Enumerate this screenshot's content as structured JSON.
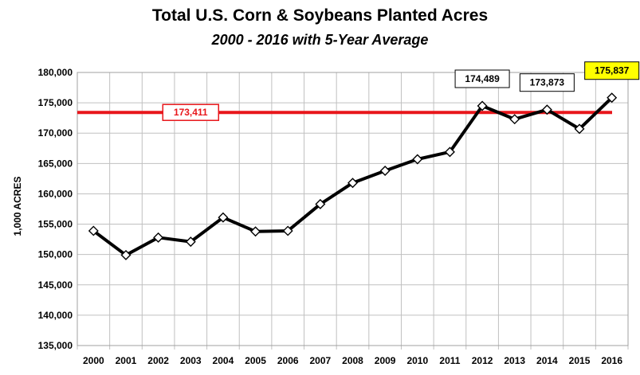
{
  "chart_data": {
    "type": "line",
    "title": "Total U.S. Corn & Soybeans Planted Acres",
    "subtitle": "2000 - 2016 with 5-Year Average",
    "xlabel": "",
    "ylabel": "1,000 ACRES",
    "ylim": [
      135000,
      180000
    ],
    "y_ticks": [
      135000,
      140000,
      145000,
      150000,
      155000,
      160000,
      165000,
      170000,
      175000,
      180000
    ],
    "y_tick_labels": [
      "135,000",
      "140,000",
      "145,000",
      "150,000",
      "155,000",
      "160,000",
      "165,000",
      "170,000",
      "175,000",
      "180,000"
    ],
    "grid": true,
    "categories": [
      "2000",
      "2001",
      "2002",
      "2003",
      "2004",
      "2005",
      "2006",
      "2007",
      "2008",
      "2009",
      "2010",
      "2011",
      "2012",
      "2013",
      "2014",
      "2015",
      "2016"
    ],
    "series": [
      {
        "values": [
          153900,
          149900,
          152800,
          152100,
          156100,
          153800,
          153900,
          158300,
          161800,
          163800,
          165700,
          166900,
          174489,
          172300,
          173873,
          170700,
          175837
        ],
        "color": "#000000"
      }
    ],
    "average_line": {
      "value": 173411,
      "label": "173,411",
      "color": "#e8161b"
    },
    "data_labels": [
      {
        "category": "2012",
        "text": "174,489",
        "highlight": false
      },
      {
        "category": "2014",
        "text": "173,873",
        "highlight": false
      },
      {
        "category": "2016",
        "text": "175,837",
        "highlight": true
      }
    ],
    "colors": {
      "line": "#000000",
      "average": "#e8161b",
      "highlight": "#ffff00",
      "grid": "#c0c0c0"
    }
  }
}
